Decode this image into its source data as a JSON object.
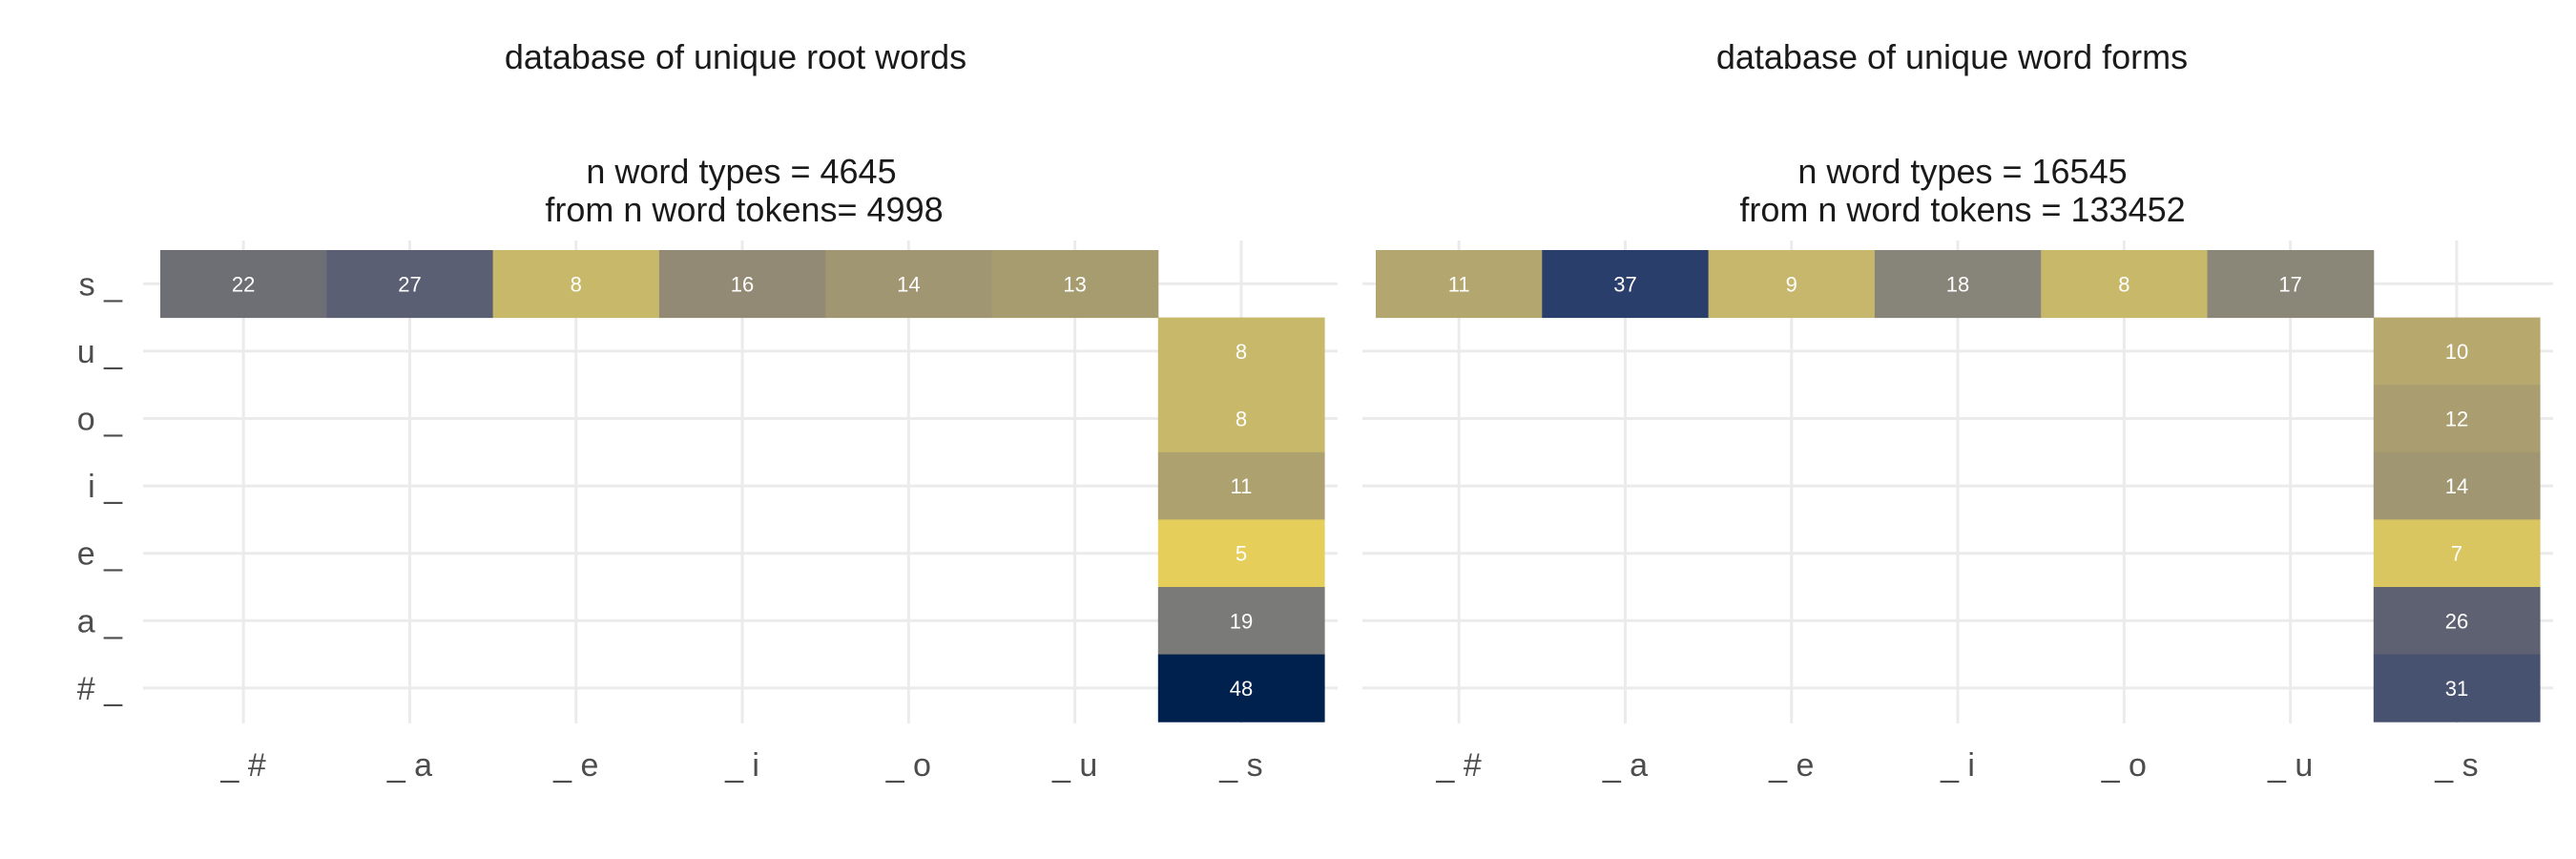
{
  "chart_data": [
    {
      "type": "heatmap",
      "title": "database of unique root words",
      "subtitle_lines": [
        "n word types = 4645",
        "from n word tokens= 4998"
      ],
      "x_categories": [
        "_#",
        "_a",
        "_e",
        "_i",
        "_o",
        "_u",
        "_s"
      ],
      "y_categories": [
        "#_",
        "a_",
        "e_",
        "i_",
        "o_",
        "u_",
        "s_"
      ],
      "cells": [
        {
          "row": "s_",
          "col": "_#",
          "value": 22,
          "color": "#6e6f75"
        },
        {
          "row": "s_",
          "col": "_a",
          "value": 27,
          "color": "#5b5f73"
        },
        {
          "row": "s_",
          "col": "_e",
          "value": 8,
          "color": "#c8b96a"
        },
        {
          "row": "s_",
          "col": "_i",
          "value": 16,
          "color": "#928a74"
        },
        {
          "row": "s_",
          "col": "_o",
          "value": 14,
          "color": "#a09672"
        },
        {
          "row": "s_",
          "col": "_u",
          "value": 13,
          "color": "#a79c70"
        },
        {
          "row": "u_",
          "col": "_s",
          "value": 8,
          "color": "#c8b96a"
        },
        {
          "row": "o_",
          "col": "_s",
          "value": 8,
          "color": "#c8b96a"
        },
        {
          "row": "i_",
          "col": "_s",
          "value": 11,
          "color": "#aea170"
        },
        {
          "row": "e_",
          "col": "_s",
          "value": 5,
          "color": "#e5cf5a"
        },
        {
          "row": "a_",
          "col": "_s",
          "value": 19,
          "color": "#7a7a78"
        },
        {
          "row": "#_",
          "col": "_s",
          "value": 48,
          "color": "#00204d"
        }
      ]
    },
    {
      "type": "heatmap",
      "title": "database of unique word forms",
      "subtitle_lines": [
        "n word types = 16545",
        "from n word tokens = 133452"
      ],
      "x_categories": [
        "_#",
        "_a",
        "_e",
        "_i",
        "_o",
        "_u",
        "_s"
      ],
      "y_categories": [
        "#_",
        "a_",
        "e_",
        "i_",
        "o_",
        "u_",
        "s_"
      ],
      "cells": [
        {
          "row": "s_",
          "col": "_#",
          "value": 11,
          "color": "#b3a66e"
        },
        {
          "row": "s_",
          "col": "_a",
          "value": 37,
          "color": "#2a3e6b"
        },
        {
          "row": "s_",
          "col": "_e",
          "value": 9,
          "color": "#c6b76c"
        },
        {
          "row": "s_",
          "col": "_i",
          "value": 18,
          "color": "#878479"
        },
        {
          "row": "s_",
          "col": "_o",
          "value": 8,
          "color": "#c8b96a"
        },
        {
          "row": "s_",
          "col": "_u",
          "value": 17,
          "color": "#8b8778"
        },
        {
          "row": "u_",
          "col": "_s",
          "value": 10,
          "color": "#b7a96e"
        },
        {
          "row": "o_",
          "col": "_s",
          "value": 12,
          "color": "#aa9e70"
        },
        {
          "row": "i_",
          "col": "_s",
          "value": 14,
          "color": "#a09672"
        },
        {
          "row": "e_",
          "col": "_s",
          "value": 7,
          "color": "#d9c660"
        },
        {
          "row": "a_",
          "col": "_s",
          "value": 26,
          "color": "#5d6171"
        },
        {
          "row": "#_",
          "col": "_s",
          "value": 31,
          "color": "#475270"
        }
      ]
    }
  ],
  "style": {
    "grid_color": "#ebebeb",
    "text_color": "#1a1a1a",
    "tick_color": "#4d4d4d",
    "cell_label_color": "#ffffff"
  }
}
